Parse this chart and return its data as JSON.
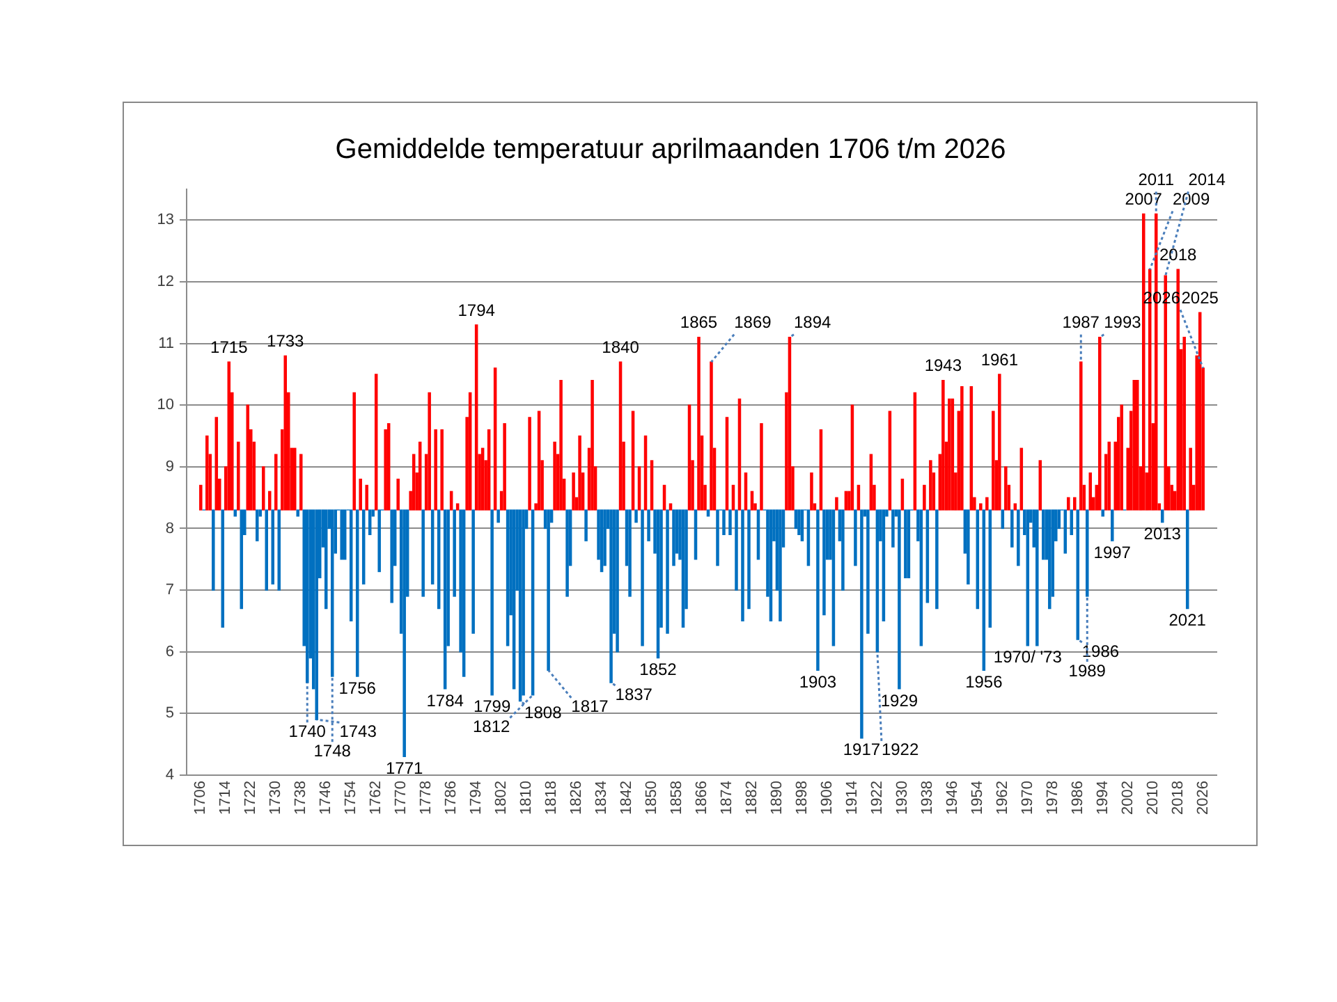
{
  "chart_data": {
    "type": "bar",
    "title": "Gemiddelde temperatuur aprilmaanden 1706 t/m 2026",
    "x": [
      1706,
      1707,
      1708,
      1709,
      1710,
      1711,
      1712,
      1713,
      1714,
      1715,
      1716,
      1717,
      1718,
      1719,
      1720,
      1721,
      1722,
      1723,
      1724,
      1725,
      1726,
      1727,
      1728,
      1729,
      1730,
      1731,
      1732,
      1733,
      1734,
      1735,
      1736,
      1737,
      1738,
      1739,
      1740,
      1741,
      1742,
      1743,
      1744,
      1745,
      1746,
      1747,
      1748,
      1749,
      1750,
      1751,
      1752,
      1753,
      1754,
      1755,
      1756,
      1757,
      1758,
      1759,
      1760,
      1761,
      1762,
      1763,
      1764,
      1765,
      1766,
      1767,
      1768,
      1769,
      1770,
      1771,
      1772,
      1773,
      1774,
      1775,
      1776,
      1777,
      1778,
      1779,
      1780,
      1781,
      1782,
      1783,
      1784,
      1785,
      1786,
      1787,
      1788,
      1789,
      1790,
      1791,
      1792,
      1793,
      1794,
      1795,
      1796,
      1797,
      1798,
      1799,
      1800,
      1801,
      1802,
      1803,
      1804,
      1805,
      1806,
      1807,
      1808,
      1809,
      1810,
      1811,
      1812,
      1813,
      1814,
      1815,
      1816,
      1817,
      1818,
      1819,
      1820,
      1821,
      1822,
      1823,
      1824,
      1825,
      1826,
      1827,
      1828,
      1829,
      1830,
      1831,
      1832,
      1833,
      1834,
      1835,
      1836,
      1837,
      1838,
      1839,
      1840,
      1841,
      1842,
      1843,
      1844,
      1845,
      1846,
      1847,
      1848,
      1849,
      1850,
      1851,
      1852,
      1853,
      1854,
      1855,
      1856,
      1857,
      1858,
      1859,
      1860,
      1861,
      1862,
      1863,
      1864,
      1865,
      1866,
      1867,
      1868,
      1869,
      1870,
      1871,
      1872,
      1873,
      1874,
      1875,
      1876,
      1877,
      1878,
      1879,
      1880,
      1881,
      1882,
      1883,
      1884,
      1885,
      1886,
      1887,
      1888,
      1889,
      1890,
      1891,
      1892,
      1893,
      1894,
      1895,
      1896,
      1897,
      1898,
      1899,
      1900,
      1901,
      1902,
      1903,
      1904,
      1905,
      1906,
      1907,
      1908,
      1909,
      1910,
      1911,
      1912,
      1913,
      1914,
      1915,
      1916,
      1917,
      1918,
      1919,
      1920,
      1921,
      1922,
      1923,
      1924,
      1925,
      1926,
      1927,
      1928,
      1929,
      1930,
      1931,
      1932,
      1933,
      1934,
      1935,
      1936,
      1937,
      1938,
      1939,
      1940,
      1941,
      1942,
      1943,
      1944,
      1945,
      1946,
      1947,
      1948,
      1949,
      1950,
      1951,
      1952,
      1953,
      1954,
      1955,
      1956,
      1957,
      1958,
      1959,
      1960,
      1961,
      1962,
      1963,
      1964,
      1965,
      1966,
      1967,
      1968,
      1969,
      1970,
      1971,
      1972,
      1973,
      1974,
      1975,
      1976,
      1977,
      1978,
      1979,
      1980,
      1981,
      1982,
      1983,
      1984,
      1985,
      1986,
      1987,
      1988,
      1989,
      1990,
      1991,
      1992,
      1993,
      1994,
      1995,
      1996,
      1997,
      1998,
      1999,
      2000,
      2001,
      2002,
      2003,
      2004,
      2005,
      2006,
      2007,
      2008,
      2009,
      2010,
      2011,
      2012,
      2013,
      2014,
      2015,
      2016,
      2017,
      2018,
      2019,
      2020,
      2021,
      2022,
      2023,
      2024,
      2025,
      2026
    ],
    "values": [
      0.4,
      0,
      1.2,
      0.9,
      -1.3,
      1.5,
      0.5,
      -1.9,
      0.7,
      2.4,
      1.9,
      -0.1,
      1.1,
      -1.6,
      -0.4,
      1.7,
      1.3,
      1.1,
      -0.5,
      -0.1,
      0.7,
      -1.3,
      0.3,
      -1.2,
      0.9,
      -1.3,
      1.3,
      2.5,
      1.9,
      1.0,
      1.0,
      -0.1,
      0.9,
      -2.2,
      -2.8,
      -2.4,
      -2.9,
      -3.4,
      -1.1,
      -0.6,
      -1.6,
      -0.3,
      -2.7,
      -0.7,
      0,
      -0.8,
      -0.8,
      0,
      -1.8,
      1.9,
      -2.7,
      0.5,
      -1.2,
      0.4,
      -0.4,
      -0.1,
      2.2,
      -1.0,
      0,
      1.3,
      1.4,
      -1.5,
      -0.9,
      0.5,
      -2.0,
      -4.0,
      -1.4,
      0.3,
      0.9,
      0.6,
      1.1,
      -1.4,
      0.9,
      1.9,
      -1.2,
      1.3,
      -1.6,
      1.3,
      -2.9,
      -2.2,
      0.3,
      -1.4,
      0.1,
      -2.3,
      -2.7,
      1.5,
      1.9,
      -2.0,
      3.0,
      0.9,
      1.0,
      0.8,
      1.3,
      -3.0,
      2.3,
      -0.2,
      0.3,
      1.4,
      -2.2,
      -1.7,
      -2.9,
      -1.3,
      -3.1,
      -3.0,
      -0.3,
      1.5,
      -3.0,
      0.1,
      1.6,
      0.8,
      -0.3,
      -2.6,
      -0.2,
      1.1,
      0.9,
      2.1,
      0.5,
      -1.4,
      -0.9,
      0.6,
      0.2,
      1.2,
      0.6,
      -0.5,
      1.0,
      2.1,
      0.7,
      -0.8,
      -1.0,
      -0.9,
      -0.3,
      -2.8,
      -2.0,
      -2.3,
      2.4,
      1.1,
      -0.9,
      -1.4,
      1.6,
      -0.2,
      0.7,
      -2.2,
      1.2,
      -0.5,
      0.8,
      -0.7,
      -2.4,
      -1.9,
      0.4,
      -2.0,
      0.1,
      -0.9,
      -0.7,
      -0.8,
      -1.9,
      -1.6,
      1.7,
      0.8,
      -0.8,
      2.8,
      1.2,
      0.4,
      -0.1,
      2.4,
      1.0,
      -0.9,
      0,
      -0.4,
      1.5,
      -0.4,
      0.4,
      -1.3,
      1.8,
      -1.8,
      0.6,
      -1.6,
      0.3,
      0.1,
      -0.8,
      1.4,
      0,
      -1.4,
      -1.8,
      -0.5,
      -1.3,
      -1.8,
      -0.6,
      1.9,
      2.8,
      0.7,
      -0.3,
      -0.4,
      -0.5,
      0,
      -0.9,
      0.6,
      0.1,
      -2.6,
      1.3,
      -1.7,
      -0.8,
      -0.8,
      -2.2,
      0.2,
      -0.5,
      -1.3,
      0.3,
      0.3,
      1.7,
      -0.9,
      0.4,
      -3.7,
      -0.1,
      -2.0,
      0.9,
      0.4,
      -2.3,
      -0.5,
      -1.8,
      -0.1,
      1.6,
      -0.6,
      -0.1,
      -2.9,
      0.5,
      -1.1,
      -1.1,
      0,
      1.9,
      -0.5,
      -2.2,
      0.4,
      -1.5,
      0.8,
      0.6,
      -1.6,
      0.9,
      2.1,
      1.1,
      1.8,
      1.8,
      0.6,
      1.6,
      2.0,
      -0.7,
      -1.2,
      2.0,
      0.2,
      -1.6,
      0.1,
      -2.6,
      0.2,
      -1.9,
      1.6,
      0.8,
      2.2,
      -0.3,
      0.7,
      0.4,
      -0.6,
      0.1,
      -0.9,
      1.0,
      -0.4,
      -2.2,
      -0.2,
      -0.6,
      -2.2,
      0.8,
      -0.8,
      -0.8,
      -1.6,
      -1.4,
      -0.5,
      -0.3,
      0,
      -0.7,
      0.2,
      -0.4,
      0.2,
      -2.1,
      2.4,
      0.4,
      -1.4,
      0.6,
      0.2,
      0.4,
      2.8,
      -0.1,
      0.9,
      1.1,
      -0.5,
      1.1,
      1.5,
      1.7,
      0,
      1.0,
      1.6,
      2.1,
      2.1,
      0.7,
      4.8,
      0.6,
      3.9,
      1.4,
      4.8,
      0.1,
      -0.2,
      3.8,
      0.7,
      0.4,
      0.3,
      3.9,
      2.6,
      2.8,
      -1.6,
      1.0,
      0.4,
      2.5,
      3.2,
      2.3
    ],
    "base": [
      8.3,
      8.3,
      8.3,
      8.3,
      8.3,
      8.3,
      8.3,
      8.3,
      8.3,
      8.3,
      8.3,
      8.3,
      8.3,
      8.3,
      8.3,
      8.3,
      8.3,
      8.3,
      8.3,
      8.3,
      8.3,
      8.3,
      8.3,
      8.3,
      8.3,
      8.3,
      8.3,
      8.3,
      8.3,
      8.3,
      8.3,
      8.3,
      8.3,
      8.3,
      8.3,
      8.3,
      8.3,
      8.3,
      8.3,
      8.3,
      8.3,
      8.3,
      8.3,
      8.3,
      8.3,
      8.3,
      8.3,
      8.3,
      8.3,
      8.3,
      8.3,
      8.3,
      8.3,
      8.3,
      8.3,
      8.3,
      8.3,
      8.3,
      8.3,
      8.3,
      8.3,
      8.3,
      8.3,
      8.3,
      8.3,
      8.3,
      8.3,
      8.3,
      8.3,
      8.3,
      8.3,
      8.3,
      8.3,
      8.3,
      8.3,
      8.3,
      8.3,
      8.3,
      8.3,
      8.3,
      8.3,
      8.3,
      8.3,
      8.3,
      8.3,
      8.3,
      8.3,
      8.3,
      8.3,
      8.3,
      8.3,
      8.3,
      8.3,
      8.3,
      8.3,
      8.3,
      8.3,
      8.3,
      8.3,
      8.3,
      8.3,
      8.3,
      8.3,
      8.3,
      8.3,
      8.3,
      8.3,
      8.3,
      8.3,
      8.3,
      8.3,
      8.3,
      8.3,
      8.3,
      8.3,
      8.3,
      8.3,
      8.3,
      8.3,
      8.3,
      8.3,
      8.3,
      8.3,
      8.3,
      8.3,
      8.3,
      8.3,
      8.3,
      8.3,
      8.3,
      8.3,
      8.3,
      8.3,
      8.3,
      8.3,
      8.3,
      8.3,
      8.3,
      8.3,
      8.3,
      8.3,
      8.3,
      8.3,
      8.3,
      8.3,
      8.3,
      8.3,
      8.3,
      8.3,
      8.3,
      8.3,
      8.3,
      8.3,
      8.3,
      8.3,
      8.3,
      8.3,
      8.3,
      8.3,
      8.3,
      8.3,
      8.3,
      8.3,
      8.3,
      8.3,
      8.3,
      8.3,
      8.3,
      8.3,
      8.3,
      8.3,
      8.3,
      8.3,
      8.3,
      8.3,
      8.3,
      8.3,
      8.3,
      8.3,
      8.3,
      8.3,
      8.3,
      8.3,
      8.3,
      8.3,
      8.3,
      8.3,
      8.3,
      8.3,
      8.3,
      8.3,
      8.3,
      8.3,
      8.3,
      8.3,
      8.3,
      8.3,
      8.3,
      8.3,
      8.3,
      8.3,
      8.3,
      8.3,
      8.3,
      8.3,
      8.3,
      8.3,
      8.3,
      8.3,
      8.3,
      8.3,
      8.3,
      8.3,
      8.3,
      8.3,
      8.3,
      8.3,
      8.3,
      8.3,
      8.3,
      8.3,
      8.3,
      8.3,
      8.3,
      8.3,
      8.3,
      8.3,
      8.3,
      8.3,
      8.3,
      8.3,
      8.3,
      8.3,
      8.3,
      8.3,
      8.3,
      8.3,
      8.3,
      8.3,
      8.3,
      8.3,
      8.3,
      8.3,
      8.3,
      8.3,
      8.3,
      8.3,
      8.3,
      8.3,
      8.3,
      8.3,
      8.3,
      8.3,
      8.3,
      8.3,
      8.3,
      8.3,
      8.3,
      8.3,
      8.3,
      8.3,
      8.3,
      8.3,
      8.3,
      8.3,
      8.3,
      8.3,
      8.3,
      8.3,
      8.3,
      8.3,
      8.3,
      8.3,
      8.3,
      8.3,
      8.3,
      8.3,
      8.3,
      8.3,
      8.3,
      8.3,
      8.3,
      8.3,
      8.3,
      8.3,
      8.3,
      8.3,
      8.3,
      8.3,
      8.3,
      8.3,
      8.3,
      8.3,
      8.3,
      8.3,
      8.3,
      8.3,
      8.3,
      8.3,
      8.3,
      8.3,
      8.3,
      8.3,
      8.3,
      8.3,
      8.3,
      8.3,
      8.3,
      8.3,
      8.3,
      8.3,
      8.3,
      8.3,
      8.3,
      8.3,
      8.3,
      8.3,
      8.3,
      8.3,
      8.3,
      8.3
    ],
    "colors": [
      "#ff0000",
      "#0070c0",
      "#ff0000",
      "#ff0000",
      "#0070c0",
      "#ff0000",
      "#ff0000",
      "#0070c0",
      "#ff0000",
      "#ff0000",
      "#ff0000",
      "#0070c0",
      "#ff0000",
      "#0070c0",
      "#0070c0",
      "#ff0000",
      "#ff0000",
      "#ff0000",
      "#0070c0",
      "#0070c0",
      "#ff0000",
      "#0070c0",
      "#ff0000",
      "#0070c0",
      "#ff0000",
      "#0070c0",
      "#ff0000",
      "#ff0000",
      "#ff0000",
      "#ff0000",
      "#ff0000",
      "#0070c0",
      "#ff0000",
      "#0070c0",
      "#0070c0",
      "#0070c0",
      "#0070c0",
      "#0070c0",
      "#0070c0",
      "#0070c0",
      "#0070c0",
      "#0070c0",
      "#0070c0",
      "#0070c0",
      "#0070c0",
      "#0070c0",
      "#0070c0",
      "#0070c0",
      "#0070c0",
      "#ff0000",
      "#0070c0",
      "#ff0000",
      "#0070c0",
      "#ff0000",
      "#0070c0",
      "#0070c0",
      "#ff0000",
      "#0070c0",
      "#0070c0",
      "#ff0000",
      "#ff0000",
      "#0070c0",
      "#0070c0",
      "#ff0000",
      "#0070c0",
      "#0070c0",
      "#0070c0",
      "#ff0000",
      "#ff0000",
      "#ff0000",
      "#ff0000",
      "#0070c0",
      "#ff0000",
      "#ff0000",
      "#0070c0",
      "#ff0000",
      "#0070c0",
      "#ff0000",
      "#0070c0",
      "#0070c0",
      "#ff0000",
      "#0070c0",
      "#ff0000",
      "#0070c0",
      "#0070c0",
      "#ff0000",
      "#ff0000",
      "#0070c0",
      "#ff0000",
      "#ff0000",
      "#ff0000",
      "#ff0000",
      "#ff0000",
      "#0070c0",
      "#ff0000",
      "#0070c0",
      "#ff0000",
      "#ff0000",
      "#0070c0",
      "#0070c0",
      "#0070c0",
      "#0070c0",
      "#0070c0",
      "#0070c0",
      "#0070c0",
      "#ff0000",
      "#0070c0",
      "#ff0000",
      "#ff0000",
      "#ff0000",
      "#0070c0",
      "#0070c0",
      "#0070c0",
      "#ff0000",
      "#ff0000",
      "#ff0000",
      "#ff0000",
      "#0070c0",
      "#0070c0",
      "#ff0000",
      "#ff0000",
      "#ff0000",
      "#ff0000",
      "#0070c0",
      "#ff0000",
      "#ff0000",
      "#ff0000",
      "#0070c0",
      "#0070c0",
      "#0070c0",
      "#0070c0",
      "#0070c0",
      "#0070c0",
      "#0070c0",
      "#ff0000",
      "#ff0000",
      "#0070c0",
      "#0070c0",
      "#ff0000",
      "#0070c0",
      "#ff0000",
      "#0070c0",
      "#ff0000",
      "#0070c0",
      "#ff0000",
      "#0070c0",
      "#0070c0",
      "#0070c0",
      "#ff0000",
      "#0070c0",
      "#ff0000",
      "#0070c0",
      "#0070c0",
      "#0070c0",
      "#0070c0",
      "#0070c0",
      "#ff0000",
      "#ff0000",
      "#0070c0",
      "#ff0000",
      "#ff0000",
      "#ff0000",
      "#0070c0",
      "#ff0000",
      "#ff0000",
      "#0070c0",
      "#0070c0",
      "#0070c0",
      "#ff0000",
      "#0070c0",
      "#ff0000",
      "#0070c0",
      "#ff0000",
      "#0070c0",
      "#ff0000",
      "#0070c0",
      "#ff0000",
      "#ff0000",
      "#0070c0",
      "#ff0000",
      "#0070c0",
      "#0070c0",
      "#0070c0",
      "#0070c0",
      "#0070c0",
      "#0070c0",
      "#0070c0",
      "#ff0000",
      "#ff0000",
      "#ff0000",
      "#0070c0",
      "#0070c0",
      "#0070c0",
      "#0070c0",
      "#0070c0",
      "#ff0000",
      "#ff0000",
      "#0070c0",
      "#ff0000",
      "#0070c0",
      "#0070c0",
      "#0070c0",
      "#0070c0",
      "#ff0000",
      "#0070c0",
      "#0070c0",
      "#ff0000",
      "#ff0000",
      "#ff0000",
      "#0070c0",
      "#ff0000",
      "#0070c0",
      "#0070c0",
      "#0070c0",
      "#ff0000",
      "#ff0000",
      "#0070c0",
      "#0070c0",
      "#0070c0",
      "#0070c0",
      "#ff0000",
      "#0070c0",
      "#0070c0",
      "#0070c0",
      "#ff0000",
      "#0070c0",
      "#0070c0",
      "#0070c0",
      "#ff0000",
      "#0070c0",
      "#0070c0",
      "#ff0000",
      "#0070c0",
      "#ff0000",
      "#ff0000",
      "#0070c0",
      "#ff0000",
      "#ff0000",
      "#ff0000",
      "#ff0000",
      "#ff0000",
      "#ff0000",
      "#ff0000",
      "#ff0000",
      "#0070c0",
      "#0070c0",
      "#ff0000",
      "#ff0000",
      "#0070c0",
      "#ff0000",
      "#0070c0",
      "#ff0000",
      "#0070c0",
      "#ff0000",
      "#ff0000",
      "#ff0000",
      "#0070c0",
      "#ff0000",
      "#ff0000",
      "#0070c0",
      "#ff0000",
      "#0070c0",
      "#ff0000",
      "#0070c0",
      "#0070c0",
      "#0070c0",
      "#0070c0",
      "#0070c0",
      "#ff0000",
      "#0070c0",
      "#0070c0",
      "#0070c0",
      "#0070c0",
      "#0070c0",
      "#0070c0",
      "#0070c0",
      "#0070c0",
      "#ff0000",
      "#0070c0",
      "#ff0000",
      "#0070c0",
      "#ff0000",
      "#ff0000",
      "#0070c0",
      "#ff0000",
      "#ff0000",
      "#ff0000",
      "#ff0000",
      "#0070c0",
      "#ff0000",
      "#ff0000",
      "#0070c0",
      "#ff0000",
      "#ff0000",
      "#ff0000",
      "#0070c0",
      "#ff0000",
      "#ff0000",
      "#ff0000",
      "#ff0000",
      "#ff0000",
      "#ff0000",
      "#ff0000",
      "#ff0000",
      "#ff0000",
      "#ff0000",
      "#ff0000",
      "#0070c0",
      "#ff0000",
      "#ff0000",
      "#ff0000",
      "#ff0000",
      "#ff0000",
      "#ff0000",
      "#ff0000",
      "#0070c0",
      "#ff0000",
      "#ff0000",
      "#ff0000",
      "#ff0000",
      "#ff0000"
    ],
    "xlim": [
      1705.5,
      2026.5
    ],
    "xticks": [
      1706,
      1714,
      1722,
      1730,
      1738,
      1746,
      1754,
      1762,
      1770,
      1778,
      1786,
      1794,
      1802,
      1810,
      1818,
      1826,
      1834,
      1842,
      1850,
      1858,
      1866,
      1874,
      1882,
      1890,
      1898,
      1906,
      1914,
      1922,
      1930,
      1938,
      1946,
      1954,
      1962,
      1970,
      1978,
      1986,
      1994,
      2002,
      2010,
      2018,
      2026
    ],
    "ylim": [
      4,
      13.5
    ],
    "yticks": [
      4,
      5,
      6,
      7,
      8,
      9,
      10,
      11,
      12,
      13
    ],
    "grid": "y",
    "legend": false,
    "annotations": [
      {
        "text": "1715",
        "x": 1715,
        "y": 10.7
      },
      {
        "text": "1733",
        "x": 1733,
        "y": 10.8
      },
      {
        "text": "1740",
        "x": 1740,
        "y": 5.5
      },
      {
        "text": "1743",
        "x": 1743,
        "y": 4.9
      },
      {
        "text": "1748",
        "x": 1748,
        "y": 5.6
      },
      {
        "text": "1756",
        "x": 1756,
        "y": 5.6
      },
      {
        "text": "1771",
        "x": 1771,
        "y": 4.3
      },
      {
        "text": "1784",
        "x": 1784,
        "y": 5.4
      },
      {
        "text": "1794",
        "x": 1794,
        "y": 11.3
      },
      {
        "text": "1799",
        "x": 1799,
        "y": 5.3
      },
      {
        "text": "1808",
        "x": 1808,
        "y": 5.2
      },
      {
        "text": "1812",
        "x": 1812,
        "y": 5.3
      },
      {
        "text": "1817",
        "x": 1817,
        "y": 5.7
      },
      {
        "text": "1837",
        "x": 1837,
        "y": 5.5
      },
      {
        "text": "1840",
        "x": 1840,
        "y": 10.7
      },
      {
        "text": "1852",
        "x": 1852,
        "y": 5.9
      },
      {
        "text": "1865",
        "x": 1865,
        "y": 11.1
      },
      {
        "text": "1869",
        "x": 1869,
        "y": 10.7
      },
      {
        "text": "1894",
        "x": 1894,
        "y": 11.1
      },
      {
        "text": "1903",
        "x": 1903,
        "y": 5.7
      },
      {
        "text": "1917",
        "x": 1917,
        "y": 4.6
      },
      {
        "text": "1922",
        "x": 1922,
        "y": 6.0
      },
      {
        "text": "1929",
        "x": 1929,
        "y": 5.4
      },
      {
        "text": "1943",
        "x": 1943,
        "y": 10.4
      },
      {
        "text": "1956",
        "x": 1956,
        "y": 5.7
      },
      {
        "text": "1961",
        "x": 1961,
        "y": 10.5
      },
      {
        "text": "1970/ '73",
        "x": 1970,
        "y": 6.1
      },
      {
        "text": "1986",
        "x": 1986,
        "y": 6.2
      },
      {
        "text": "1987",
        "x": 1987,
        "y": 10.7
      },
      {
        "text": "1989",
        "x": 1989,
        "y": 6.9
      },
      {
        "text": "1993",
        "x": 1993,
        "y": 11.1
      },
      {
        "text": "1997",
        "x": 1997,
        "y": 7.8
      },
      {
        "text": "2007",
        "x": 2007,
        "y": 13.1
      },
      {
        "text": "2009",
        "x": 2009,
        "y": 12.2
      },
      {
        "text": "2011",
        "x": 2011,
        "y": 13.1
      },
      {
        "text": "2013",
        "x": 2013,
        "y": 8.1
      },
      {
        "text": "2014",
        "x": 2014,
        "y": 12.1
      },
      {
        "text": "2018",
        "x": 2018,
        "y": 12.2
      },
      {
        "text": "2021",
        "x": 2021,
        "y": 6.7
      },
      {
        "text": "2025",
        "x": 2025,
        "y": 11.5
      },
      {
        "text": "2026",
        "x": 2026,
        "y": 10.6
      }
    ]
  }
}
